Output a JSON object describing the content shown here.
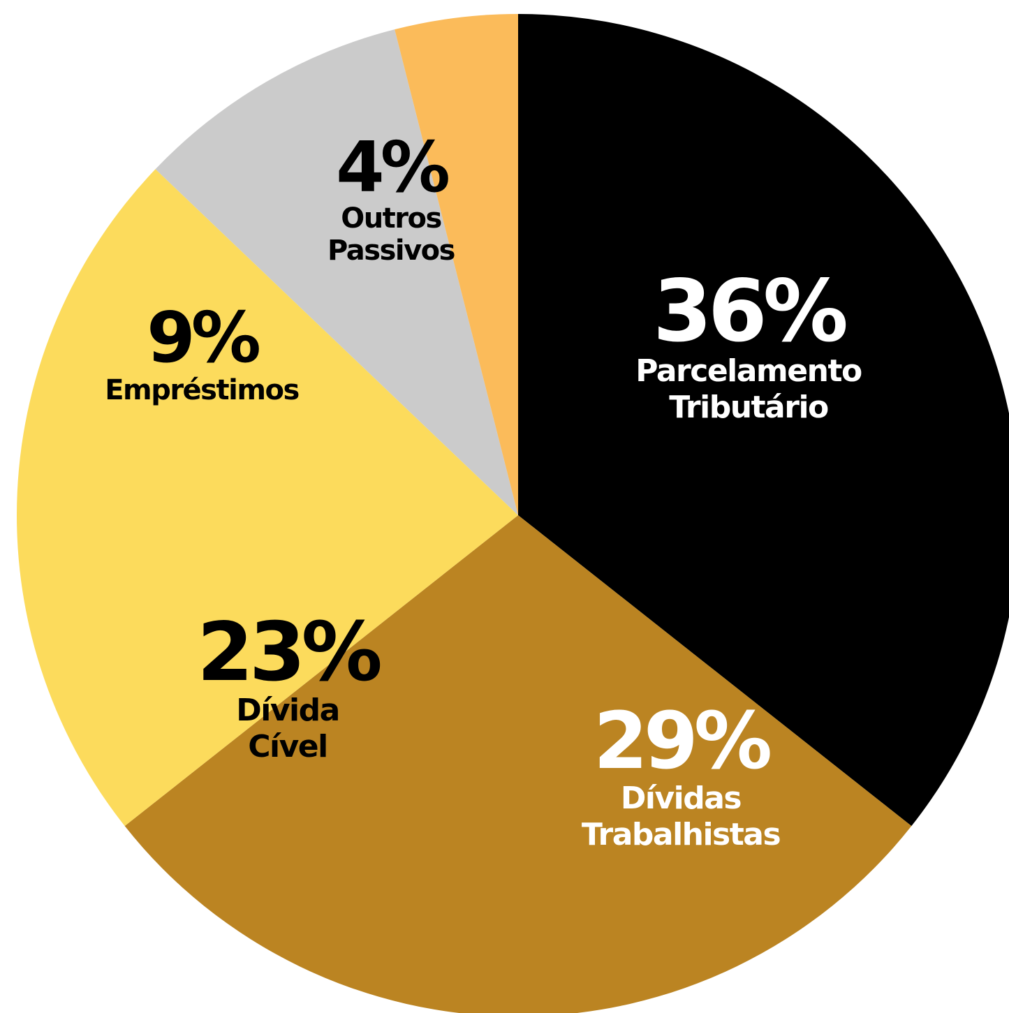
{
  "chart_data": {
    "type": "pie",
    "title": "",
    "slices": [
      {
        "value": 36,
        "value_label": "36%",
        "label_lines": [
          "Parcelamento",
          "Tributário"
        ],
        "color": "#000000",
        "text_color": "#ffffff"
      },
      {
        "value": 29,
        "value_label": "29%",
        "label_lines": [
          "Dívidas",
          "Trabalhistas"
        ],
        "color": "#bb8422",
        "text_color": "#ffffff"
      },
      {
        "value": 23,
        "value_label": "23%",
        "label_lines": [
          "Dívida",
          "Cível"
        ],
        "color": "#fcdb5c",
        "text_color": "#000000"
      },
      {
        "value": 9,
        "value_label": "9%",
        "label_lines": [
          "Empréstimos"
        ],
        "color": "#cbcbcb",
        "text_color": "#000000"
      },
      {
        "value": 4,
        "value_label": "4%",
        "label_lines": [
          "Outros",
          "Passivos"
        ],
        "color": "#fbbb5a",
        "text_color": "#000000"
      }
    ],
    "start_angle_deg": 0,
    "direction": "clockwise",
    "legend": "none"
  }
}
